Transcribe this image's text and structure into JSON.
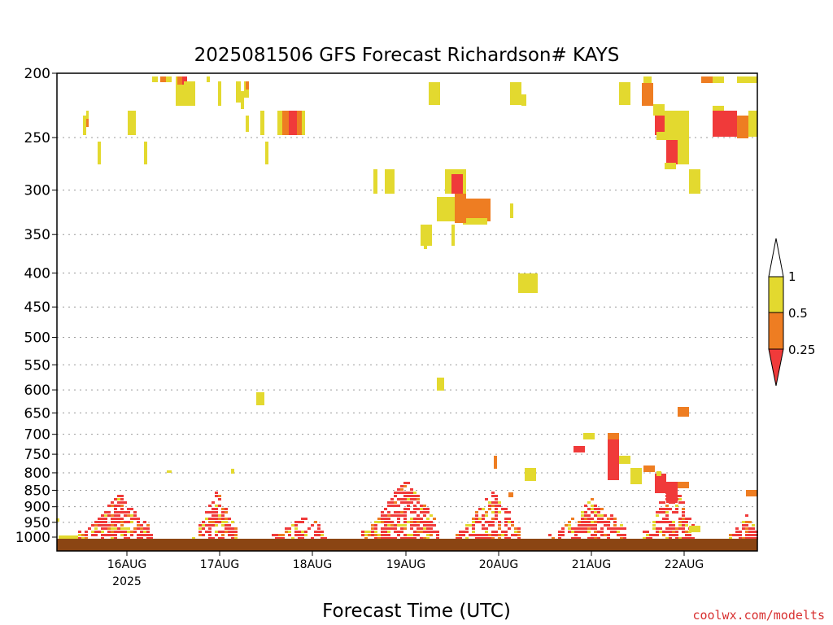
{
  "chart_data": {
    "type": "heatmap",
    "title": "2025081506 GFS Forecast Richardson# KAYS",
    "xlabel": "Forecast Time (UTC)",
    "ylabel": "",
    "x_ticks": [
      "16AUG",
      "17AUG",
      "18AUG",
      "19AUG",
      "20AUG",
      "21AUG",
      "22AUG"
    ],
    "x_year_label": "2025",
    "y_ticks": [
      "200",
      "250",
      "300",
      "350",
      "400",
      "450",
      "500",
      "550",
      "600",
      "650",
      "700",
      "750",
      "800",
      "850",
      "900",
      "950",
      "1000"
    ],
    "y_pressure_values": [
      200,
      250,
      300,
      350,
      400,
      450,
      500,
      550,
      600,
      650,
      700,
      750,
      800,
      850,
      900,
      950,
      1000
    ],
    "y_scale": "log-pressure",
    "grid": "horizontal dotted",
    "colorbar": {
      "labels": [
        "1",
        "0.5",
        "0.25"
      ],
      "bins": [
        {
          "range": [
            0.5,
            1.0
          ],
          "color": "#e3d92f"
        },
        {
          "range": [
            0.25,
            0.5
          ],
          "color": "#ee7d22"
        },
        {
          "range": [
            0,
            0.25
          ],
          "color": "#f03a3a"
        }
      ]
    },
    "credit": "coolwx.com/modelts"
  },
  "colors": {
    "yellow": "#e3d92f",
    "orange": "#ee7d22",
    "red": "#f03a3a",
    "ground": "#8b4513"
  }
}
